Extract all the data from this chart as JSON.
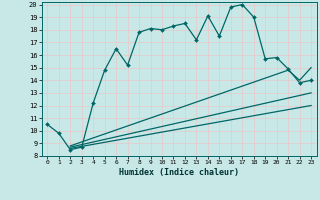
{
  "xlabel": "Humidex (Indice chaleur)",
  "bg_color": "#c8e8e8",
  "grid_color": "#d4eeee",
  "line_color": "#006666",
  "xlim": [
    -0.5,
    23.5
  ],
  "ylim": [
    8,
    20.2
  ],
  "xticks": [
    0,
    1,
    2,
    3,
    4,
    5,
    6,
    7,
    8,
    9,
    10,
    11,
    12,
    13,
    14,
    15,
    16,
    17,
    18,
    19,
    20,
    21,
    22,
    23
  ],
  "yticks": [
    8,
    9,
    10,
    11,
    12,
    13,
    14,
    15,
    16,
    17,
    18,
    19,
    20
  ],
  "jagged_x": [
    0,
    1,
    2,
    3,
    4,
    5,
    6,
    7,
    8,
    9,
    10,
    11,
    12,
    13,
    14,
    15,
    16,
    17,
    18,
    19,
    20,
    21,
    22,
    23
  ],
  "jagged_y": [
    10.5,
    9.8,
    8.5,
    8.7,
    12.2,
    14.8,
    16.5,
    15.2,
    17.8,
    18.1,
    18.0,
    18.3,
    18.5,
    17.2,
    19.1,
    17.5,
    19.8,
    20.0,
    19.0,
    15.7,
    15.8,
    14.9,
    13.8,
    14.0
  ],
  "line2_x": [
    2,
    21,
    22,
    23
  ],
  "line2_y": [
    8.8,
    14.8,
    14.0,
    15.0
  ],
  "line3_x": [
    2,
    23
  ],
  "line3_y": [
    8.7,
    13.0
  ],
  "line4_x": [
    2,
    23
  ],
  "line4_y": [
    8.6,
    12.0
  ]
}
